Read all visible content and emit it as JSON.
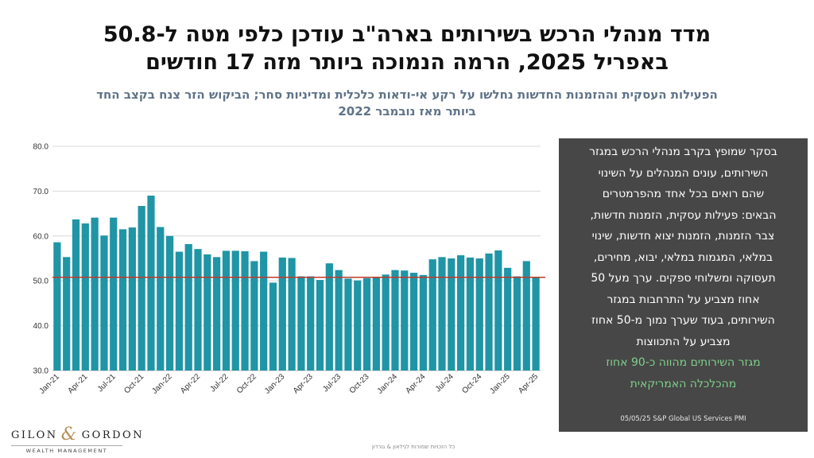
{
  "header": {
    "title_line1": "מדד מנהלי הרכש בשירותים בארה\"ב עודכן כלפי מטה ל-50.8",
    "title_line2": "באפריל 2025, הרמה הנמוכה ביותר מזה 17 חודשים",
    "subtitle_line1": "הפעילות העסקית וההזמנות החדשות נחלשו על רקע אי-ודאות כלכלית ומדיניות סחר; הביקוש הזר צנח בקצב החד",
    "subtitle_line2": "ביותר מאז נובמבר 2022"
  },
  "panel": {
    "lines": [
      "בסקר שמופץ בקרב מנהלי הרכש במגזר",
      "השירותים, עונים המנהלים על השינוי",
      "שהם רואים בכל אחד מהפרמטרים",
      "הבאים: פעילות עסקית, הזמנות חדשות,",
      "צבר הזמנות, הזמנות יצוא חדשות, שינוי",
      "במלאי, המגמות במלאי, יבוא, מחירים,",
      "תעסוקה ומשלוחי ספקים. ערך מעל 50",
      "אחוז מצביע על התרחבות במגזר",
      "השירותים, בעוד שערך נמוך מ-50 אחוז",
      "מצביע על התכווצות"
    ],
    "green_lines": [
      "מגזר השירותים מהווה כ-90 אחוז",
      "מהכלכלה האמריקאית"
    ],
    "source": "05/05/25  S&P Global US Services PMI"
  },
  "logo": {
    "main_left": "GILON",
    "amp": "&",
    "main_right": "GORDON",
    "sub": "WEALTH MANAGEMENT"
  },
  "footer": "כל הזכויות שמורות לגילאון & גורדון",
  "colors": {
    "bar": "#1f95a6",
    "reference_line": "#c0392b",
    "panel_bg": "#474747",
    "panel_green": "#7fd08c",
    "subtitle": "#5f7288"
  },
  "chart_data": {
    "type": "bar",
    "ylim": [
      30,
      80
    ],
    "yticks": [
      "30.0",
      "40.0",
      "50.0",
      "60.0",
      "70.0",
      "80.0"
    ],
    "reference_line": 50.8,
    "grid": true,
    "xtick_labels": [
      "Jan-21",
      "Apr-21",
      "Jul-21",
      "Oct-21",
      "Jan-22",
      "Apr-22",
      "Jul-22",
      "Oct-22",
      "Jan-23",
      "Apr-23",
      "Jul-23",
      "Oct-23",
      "Jan-24",
      "Apr-24",
      "Jul-24",
      "Oct-24",
      "Jan-25",
      "Apr-25"
    ],
    "categories": [
      "Jan-21",
      "Feb-21",
      "Mar-21",
      "Apr-21",
      "May-21",
      "Jun-21",
      "Jul-21",
      "Aug-21",
      "Sep-21",
      "Oct-21",
      "Nov-21",
      "Dec-21",
      "Jan-22",
      "Feb-22",
      "Mar-22",
      "Apr-22",
      "May-22",
      "Jun-22",
      "Jul-22",
      "Aug-22",
      "Sep-22",
      "Oct-22",
      "Nov-22",
      "Dec-22",
      "Jan-23",
      "Feb-23",
      "Mar-23",
      "Apr-23",
      "May-23",
      "Jun-23",
      "Jul-23",
      "Aug-23",
      "Sep-23",
      "Oct-23",
      "Nov-23",
      "Dec-23",
      "Jan-24",
      "Feb-24",
      "Mar-24",
      "Apr-24",
      "May-24",
      "Jun-24",
      "Jul-24",
      "Aug-24",
      "Sep-24",
      "Oct-24",
      "Nov-24",
      "Dec-24",
      "Jan-25",
      "Feb-25",
      "Mar-25",
      "Apr-25"
    ],
    "values": [
      58.6,
      55.3,
      63.7,
      62.8,
      64.1,
      60.1,
      64.1,
      61.5,
      61.9,
      66.7,
      69.0,
      62.0,
      60.0,
      56.5,
      58.2,
      57.1,
      55.9,
      55.3,
      56.7,
      56.7,
      56.6,
      54.4,
      56.5,
      49.6,
      55.2,
      55.1,
      51.0,
      51.0,
      50.2,
      53.9,
      52.4,
      50.5,
      50.1,
      50.6,
      50.9,
      51.4,
      52.4,
      52.3,
      51.8,
      51.3,
      54.8,
      55.3,
      55.0,
      55.7,
      55.2,
      55.0,
      56.1,
      56.8,
      52.9,
      51.0,
      54.4,
      50.8
    ]
  }
}
